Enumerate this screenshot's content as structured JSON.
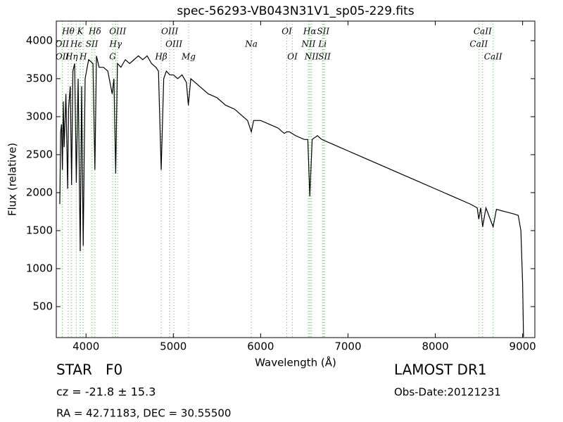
{
  "chart_data": {
    "type": "line",
    "title": "spec-56293-VB043N31V1_sp05-229.fits",
    "x_label": "Wavelength (Å)",
    "y_label": "Flux (relative)",
    "xlim": [
      3660,
      9140
    ],
    "ylim": [
      92,
      4258
    ],
    "xticks": [
      4000,
      5000,
      6000,
      7000,
      8000,
      9000
    ],
    "yticks": [
      500,
      1000,
      1500,
      2000,
      2500,
      3000,
      3500,
      4000
    ],
    "color": "#000000",
    "line_color": "#55bb55",
    "x": [
      3700,
      3710,
      3720,
      3730,
      3740,
      3750,
      3770,
      3790,
      3800,
      3820,
      3835,
      3850,
      3870,
      3889,
      3910,
      3934,
      3950,
      3968,
      3990,
      4030,
      4080,
      4102,
      4120,
      4150,
      4200,
      4250,
      4300,
      4320,
      4340,
      4360,
      4400,
      4450,
      4500,
      4550,
      4600,
      4650,
      4700,
      4750,
      4800,
      4830,
      4861,
      4890,
      4920,
      4960,
      5000,
      5050,
      5100,
      5150,
      5172,
      5200,
      5300,
      5400,
      5500,
      5600,
      5700,
      5800,
      5850,
      5893,
      5920,
      6000,
      6100,
      6200,
      6270,
      6300,
      6330,
      6400,
      6500,
      6540,
      6563,
      6590,
      6650,
      6700,
      6800,
      6900,
      7000,
      7200,
      7400,
      7600,
      7800,
      8000,
      8200,
      8400,
      8480,
      8498,
      8520,
      8542,
      8580,
      8662,
      8700,
      8800,
      8900,
      8950,
      8980,
      9000,
      9010
    ],
    "values": [
      1850,
      2800,
      2900,
      2300,
      3200,
      2600,
      3300,
      2050,
      3100,
      3400,
      2100,
      3600,
      3700,
      2130,
      3500,
      1230,
      3400,
      1300,
      3500,
      3750,
      3700,
      2300,
      3800,
      3650,
      3650,
      3600,
      3300,
      3500,
      2250,
      3700,
      3650,
      3750,
      3700,
      3750,
      3800,
      3750,
      3800,
      3700,
      3650,
      3600,
      2300,
      3500,
      3600,
      3550,
      3550,
      3500,
      3550,
      3450,
      3150,
      3500,
      3400,
      3300,
      3250,
      3150,
      3100,
      3000,
      2950,
      2800,
      2950,
      2950,
      2900,
      2850,
      2780,
      2800,
      2800,
      2750,
      2700,
      2700,
      1950,
      2700,
      2750,
      2700,
      2650,
      2600,
      2550,
      2450,
      2350,
      2250,
      2150,
      2050,
      1950,
      1850,
      1800,
      1650,
      1800,
      1550,
      1800,
      1550,
      1780,
      1750,
      1720,
      1700,
      1500,
      800,
      100
    ],
    "annotations": [
      [
        {
          "text": "Hθ",
          "x": 3797
        },
        {
          "text": "K",
          "x": 3934
        },
        {
          "text": "Hδ",
          "x": 4102
        },
        {
          "text": "OIII",
          "x": 4363
        },
        {
          "text": "OIII",
          "x": 4959
        },
        {
          "text": "OI",
          "x": 6300
        },
        {
          "text": "Hα",
          "x": 6563
        },
        {
          "text": "SII",
          "x": 6716
        },
        {
          "text": "CaII",
          "x": 8542
        }
      ],
      [
        {
          "text": "OII",
          "x": 3727
        },
        {
          "text": "Hε",
          "x": 3889
        },
        {
          "text": "SII",
          "x": 4068
        },
        {
          "text": "Hγ",
          "x": 4340
        },
        {
          "text": "OIII",
          "x": 5007
        },
        {
          "text": "Na",
          "x": 5893
        },
        {
          "text": "NII",
          "x": 6548
        },
        {
          "text": "Li",
          "x": 6708
        },
        {
          "text": "CaII",
          "x": 8498
        }
      ],
      [
        {
          "text": "OII",
          "x": 3729
        },
        {
          "text": "Hη",
          "x": 3835
        },
        {
          "text": "H",
          "x": 3968
        },
        {
          "text": "G",
          "x": 4305
        },
        {
          "text": "Hβ",
          "x": 4861
        },
        {
          "text": "Mg",
          "x": 5175
        },
        {
          "text": "OI",
          "x": 6364
        },
        {
          "text": "NII",
          "x": 6583
        },
        {
          "text": "SII",
          "x": 6731
        },
        {
          "text": "CaII",
          "x": 8662
        }
      ]
    ]
  },
  "info": {
    "class": "STAR   F0",
    "cz": "cz = -21.8 ± 15.3",
    "coords": "RA = 42.71183, DEC = 30.55500",
    "survey": "LAMOST DR1",
    "date": "Obs-Date:20121231"
  }
}
